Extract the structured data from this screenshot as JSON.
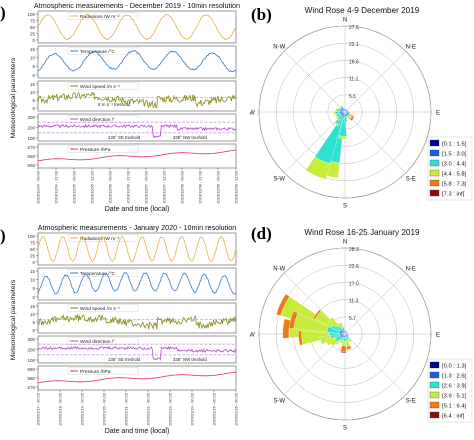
{
  "panels": {
    "a_label": ")",
    "b_label": "(b)",
    "c_label": ")",
    "d_label": "(d)"
  },
  "chart_data": [
    {
      "type": "line",
      "title": "Atmospheric measurements - December 2019 - 10min resolution",
      "xlabel": "Date and time (local)",
      "ylabel": "Meteorological parameters",
      "x_ticks": [
        "2019/12/04 - 00:00",
        "2019/12/04 - 12:00",
        "2019/12/05 - 00:00",
        "2019/12/05 - 12:00",
        "2019/12/06 - 00:00",
        "2019/12/06 - 12:00",
        "2019/12/07 - 00:00",
        "2019/12/07 - 12:00",
        "2019/12/08 - 00:00",
        "2019/12/08 - 12:00",
        "2019/12/09 - 00:00",
        "2019/12/09 - 12:00"
      ],
      "subplots": [
        {
          "label": "Radiations /W m⁻²",
          "color": "#e8b04a",
          "yticks": [
            "100",
            "75",
            "50",
            "25",
            "0"
          ],
          "days": 5
        },
        {
          "label": "Temperature /°C",
          "color": "#3a7cc0",
          "yticks": [
            "15",
            "10",
            "5",
            "0"
          ],
          "days": 5
        },
        {
          "label": "Wind speed /m s⁻¹",
          "color": "#8a8a1e",
          "yticks": [
            "15",
            "10",
            "5",
            "0"
          ],
          "threshold_label": "5 m s⁻¹ treshold",
          "threshold_color": "#b8a000"
        },
        {
          "label": "Wind direction /°",
          "color": "#b050c8",
          "yticks": [
            "300",
            "200",
            "100"
          ],
          "threshold_labels": [
            "135° SE treshold",
            "338° NW treshold"
          ],
          "threshold_color": "#b050c8"
        },
        {
          "label": "Pressure /hPa",
          "color": "#e03068",
          "yticks": [
            "670",
            "660",
            "650"
          ]
        }
      ]
    },
    {
      "type": "wind_rose",
      "title": "Wind Rose 4-9 December 2019",
      "directions": [
        "N",
        "N-E",
        "E",
        "S-E",
        "S",
        "S-W",
        "W",
        "N-W"
      ],
      "radial_ticks": [
        "27.6",
        "22.1",
        "16.6",
        "11.1",
        "5.5"
      ],
      "radial_max": 27.6,
      "legend": [
        "[0.1 : 1.5[",
        "[1.5 : 3.0[",
        "[3.0 : 4.4[",
        "[4.4 : 5.8[",
        "[5.8 : 7.3[",
        "[7.3 : inf["
      ],
      "colors": [
        "#00008b",
        "#1e5fd8",
        "#30e0d0",
        "#c8ec3c",
        "#f07818",
        "#8b1010"
      ],
      "bars": [
        {
          "angle": 195,
          "values": [
            0.8,
            1.2,
            14.5,
            4.8,
            0,
            0
          ]
        },
        {
          "angle": 205,
          "values": [
            0.8,
            1.5,
            15.0,
            5.2,
            0,
            0
          ]
        },
        {
          "angle": 185,
          "values": [
            0.8,
            1.0,
            6.0,
            0.8,
            0,
            0
          ]
        },
        {
          "angle": 215,
          "values": [
            0.5,
            1.0,
            3.0,
            0.5,
            0,
            0
          ]
        },
        {
          "angle": 175,
          "values": [
            0.6,
            0.8,
            1.8,
            0,
            0,
            0
          ]
        },
        {
          "angle": 165,
          "values": [
            0.6,
            0.8,
            0.6,
            0,
            0,
            0
          ]
        },
        {
          "angle": 145,
          "values": [
            0.6,
            0.8,
            0.5,
            0.4,
            0.3,
            0
          ]
        },
        {
          "angle": 135,
          "values": [
            0.6,
            0.8,
            0.6,
            0.6,
            0.5,
            0.3
          ]
        },
        {
          "angle": 125,
          "values": [
            0.6,
            0.8,
            0.6,
            0.6,
            0.5,
            0.2
          ]
        },
        {
          "angle": 115,
          "values": [
            0.6,
            0.8,
            0.5,
            0.4,
            0.3,
            0
          ]
        },
        {
          "angle": 95,
          "values": [
            0.6,
            0.6,
            0.4,
            0,
            0,
            0
          ]
        },
        {
          "angle": 75,
          "values": [
            0.6,
            0.5,
            0,
            0,
            0,
            0
          ]
        },
        {
          "angle": 55,
          "values": [
            0.6,
            0.4,
            0,
            0,
            0,
            0
          ]
        },
        {
          "angle": 35,
          "values": [
            0.6,
            0.3,
            0,
            0,
            0,
            0
          ]
        },
        {
          "angle": 5,
          "values": [
            0.6,
            0.3,
            0,
            0,
            0,
            0
          ]
        },
        {
          "angle": 345,
          "values": [
            0.6,
            0.5,
            0.3,
            0,
            0,
            0
          ]
        },
        {
          "angle": 325,
          "values": [
            0.7,
            0.8,
            0.6,
            0.3,
            0,
            0
          ]
        },
        {
          "angle": 305,
          "values": [
            0.7,
            0.8,
            0.6,
            0.3,
            0,
            0
          ]
        },
        {
          "angle": 285,
          "values": [
            0.7,
            1.0,
            1.0,
            0.4,
            0,
            0
          ]
        },
        {
          "angle": 265,
          "values": [
            0.7,
            1.0,
            1.5,
            0.5,
            0,
            0
          ]
        },
        {
          "angle": 245,
          "values": [
            0.7,
            0.9,
            1.3,
            0.4,
            0,
            0
          ]
        },
        {
          "angle": 225,
          "values": [
            0.7,
            0.9,
            1.5,
            0.3,
            0,
            0
          ]
        },
        {
          "angle": 155,
          "values": [
            0.6,
            0.8,
            0.4,
            0,
            0,
            0
          ]
        },
        {
          "angle": 25,
          "values": [
            0.6,
            0.3,
            0,
            0,
            0,
            0
          ]
        }
      ]
    },
    {
      "type": "line",
      "title": "Atmospheric measurements - January 2020 - 10min resolution",
      "xlabel": "Date and time (local)",
      "ylabel": "Meteorological parameters",
      "x_ticks": [
        "2020/01/17 - 00:00",
        "2020/01/18 - 00:00",
        "2020/01/19 - 00:00",
        "2020/01/20 - 00:00",
        "2020/01/21 - 00:00",
        "2020/01/22 - 00:00",
        "2020/01/23 - 00:00",
        "2020/01/24 - 00:00",
        "2020/01/25 - 00:00",
        "2020/01/26 - 00:00"
      ],
      "subplots": [
        {
          "label": "Radiations /W m⁻²",
          "color": "#e8b04a",
          "yticks": [
            "100",
            "75",
            "50",
            "25",
            "0"
          ],
          "days": 10
        },
        {
          "label": "Temperature /°C",
          "color": "#3a7cc0",
          "yticks": [
            "15",
            "10",
            "5",
            "0"
          ],
          "days": 10
        },
        {
          "label": "Wind speed /m s⁻¹",
          "color": "#8a8a1e",
          "yticks": [
            "15",
            "10",
            "5",
            "0"
          ],
          "threshold_label": "",
          "threshold_color": "#b8a000"
        },
        {
          "label": "Wind direction /°",
          "color": "#b050c8",
          "yticks": [
            "300",
            "200",
            "100"
          ],
          "threshold_labels": [
            "135° SE treshold",
            "338° NW treshold"
          ],
          "threshold_color": "#b050c8"
        },
        {
          "label": "Pressure /hPa",
          "color": "#e03068",
          "yticks": [
            "690",
            "680",
            "670"
          ]
        }
      ]
    },
    {
      "type": "wind_rose",
      "title": "Wind Rose 16-25 January 2019",
      "directions": [
        "N",
        "N-E",
        "E",
        "S-E",
        "S",
        "S-W",
        "W",
        "N-W"
      ],
      "radial_ticks": [
        "28.3",
        "22.6",
        "17.0",
        "11.3",
        "5.7"
      ],
      "radial_max": 28.3,
      "legend": [
        "[0.0 : 1.3[",
        "[1.3 : 2.6[",
        "[2.6 : 3.9[",
        "[3.9 : 5.1[",
        "[5.1 : 6.4[",
        "[6.4 : inf["
      ],
      "colors": [
        "#00008b",
        "#1e5fd8",
        "#30e0d0",
        "#c8ec3c",
        "#f07818",
        "#8b1010"
      ],
      "bars": [
        {
          "angle": 295,
          "values": [
            0.8,
            1.2,
            4.0,
            16.0,
            1.5,
            0
          ]
        },
        {
          "angle": 275,
          "values": [
            0.8,
            1.2,
            4.5,
            12.0,
            2.0,
            0
          ]
        },
        {
          "angle": 285,
          "values": [
            0.8,
            1.2,
            4.0,
            11.0,
            1.5,
            0
          ]
        },
        {
          "angle": 265,
          "values": [
            0.8,
            1.0,
            3.5,
            9.0,
            1.0,
            0
          ]
        },
        {
          "angle": 305,
          "values": [
            0.8,
            1.2,
            3.0,
            6.0,
            0.6,
            0
          ]
        },
        {
          "angle": 255,
          "values": [
            0.8,
            1.0,
            3.0,
            3.5,
            0,
            0
          ]
        },
        {
          "angle": 315,
          "values": [
            0.8,
            1.0,
            2.0,
            3.0,
            0,
            0
          ]
        },
        {
          "angle": 325,
          "values": [
            0.8,
            0.8,
            1.5,
            1.0,
            0,
            0
          ]
        },
        {
          "angle": 335,
          "values": [
            0.7,
            0.8,
            1.0,
            1.5,
            0,
            0
          ]
        },
        {
          "angle": 345,
          "values": [
            0.7,
            0.6,
            0.8,
            0.5,
            0,
            0
          ]
        },
        {
          "angle": 5,
          "values": [
            0.6,
            0.4,
            0,
            0,
            0,
            0
          ]
        },
        {
          "angle": 25,
          "values": [
            0.6,
            0.3,
            0,
            0,
            0,
            0
          ]
        },
        {
          "angle": 45,
          "values": [
            0.6,
            0.3,
            0,
            0,
            0,
            0
          ]
        },
        {
          "angle": 65,
          "values": [
            0.6,
            0.3,
            0,
            0,
            0,
            0
          ]
        },
        {
          "angle": 85,
          "values": [
            0.6,
            0.3,
            0,
            0,
            0,
            0
          ]
        },
        {
          "angle": 105,
          "values": [
            0.6,
            0.4,
            0.3,
            0,
            0,
            0
          ]
        },
        {
          "angle": 125,
          "values": [
            0.6,
            0.5,
            0.4,
            0,
            0,
            0
          ]
        },
        {
          "angle": 145,
          "values": [
            0.6,
            0.6,
            0.8,
            1.0,
            0,
            0
          ]
        },
        {
          "angle": 165,
          "values": [
            0.6,
            0.6,
            1.0,
            2.0,
            1.0,
            0
          ]
        },
        {
          "angle": 185,
          "values": [
            0.6,
            0.6,
            1.2,
            1.5,
            2.0,
            0.3
          ]
        },
        {
          "angle": 205,
          "values": [
            0.6,
            0.6,
            1.0,
            1.0,
            0,
            0
          ]
        },
        {
          "angle": 225,
          "values": [
            0.6,
            0.8,
            1.5,
            1.5,
            0,
            0
          ]
        },
        {
          "angle": 245,
          "values": [
            0.7,
            0.9,
            2.0,
            3.0,
            0,
            0
          ]
        },
        {
          "angle": 235,
          "values": [
            0.7,
            0.9,
            2.0,
            2.0,
            0,
            0
          ]
        }
      ]
    }
  ]
}
